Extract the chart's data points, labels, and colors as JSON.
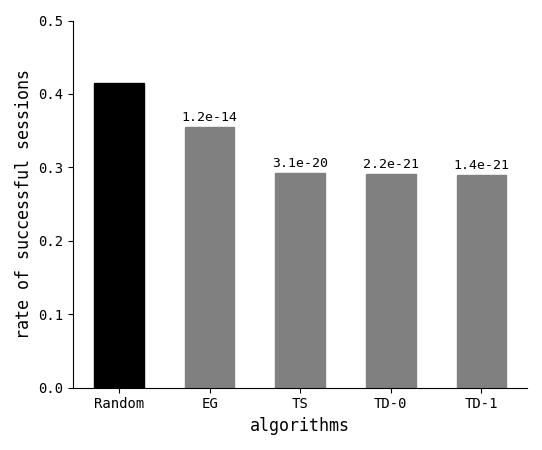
{
  "categories": [
    "Random",
    "EG",
    "TS",
    "TD-0",
    "TD-1"
  ],
  "values": [
    0.415,
    0.355,
    0.293,
    0.291,
    0.29
  ],
  "bar_colors": [
    "#000000",
    "#808080",
    "#808080",
    "#808080",
    "#808080"
  ],
  "annotations": [
    "",
    "1.2e-14",
    "3.1e-20",
    "2.2e-21",
    "1.4e-21"
  ],
  "xlabel": "algorithms",
  "ylabel": "rate of successful sessions",
  "ylim": [
    0.0,
    0.5
  ],
  "yticks": [
    0.0,
    0.1,
    0.2,
    0.3,
    0.4,
    0.5
  ],
  "annotation_fontsize": 9.5,
  "label_fontsize": 12,
  "tick_fontsize": 10,
  "background_color": "#ffffff",
  "bar_width": 0.55
}
